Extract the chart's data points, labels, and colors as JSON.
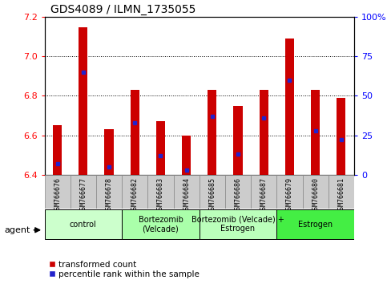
{
  "title": "GDS4089 / ILMN_1735055",
  "samples": [
    "GSM766676",
    "GSM766677",
    "GSM766678",
    "GSM766682",
    "GSM766683",
    "GSM766684",
    "GSM766685",
    "GSM766686",
    "GSM766687",
    "GSM766679",
    "GSM766680",
    "GSM766681"
  ],
  "transformed_counts": [
    6.65,
    7.15,
    6.63,
    6.83,
    6.67,
    6.6,
    6.83,
    6.75,
    6.83,
    7.09,
    6.83,
    6.79
  ],
  "percentile_ranks": [
    7,
    65,
    5,
    33,
    12,
    3,
    37,
    13,
    36,
    60,
    28,
    22
  ],
  "ylim_left": [
    6.4,
    7.2
  ],
  "ylim_right": [
    0,
    100
  ],
  "yticks_left": [
    6.4,
    6.6,
    6.8,
    7.0,
    7.2
  ],
  "yticks_right": [
    0,
    25,
    50,
    75,
    100
  ],
  "ytick_labels_right": [
    "0",
    "25",
    "50",
    "75",
    "100%"
  ],
  "bar_color": "#cc0000",
  "percentile_color": "#2222cc",
  "groups": [
    {
      "label": "control",
      "start": 0,
      "end": 2,
      "color": "#ccffcc"
    },
    {
      "label": "Bortezomib\n(Velcade)",
      "start": 3,
      "end": 5,
      "color": "#aaffaa"
    },
    {
      "label": "Bortezomib (Velcade) +\nEstrogen",
      "start": 6,
      "end": 8,
      "color": "#bbffbb"
    },
    {
      "label": "Estrogen",
      "start": 9,
      "end": 11,
      "color": "#44ee44"
    }
  ],
  "agent_label": "agent",
  "legend_red": "transformed count",
  "legend_blue": "percentile rank within the sample",
  "bar_width": 0.35,
  "figsize": [
    4.83,
    3.54
  ],
  "dpi": 100
}
